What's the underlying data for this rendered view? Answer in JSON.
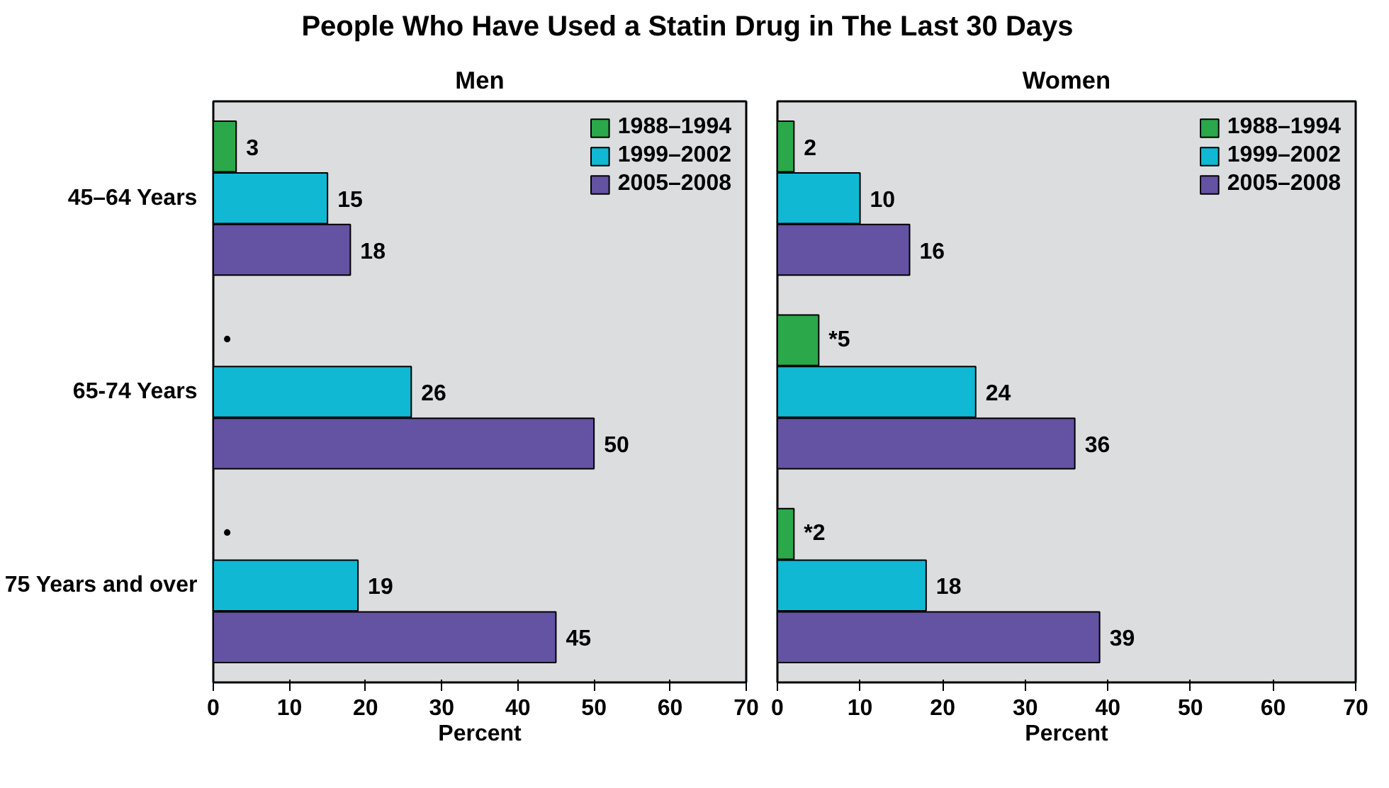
{
  "chart_data": [
    {
      "type": "bar",
      "orientation": "horizontal",
      "title": "People Who Have Used a Statin Drug in The Last 30 Days",
      "subtitle": "Men",
      "categories": [
        "45–64 Years",
        "65-74 Years",
        "75 Years and over"
      ],
      "xlabel": "Percent",
      "xlim": [
        0,
        70
      ],
      "xticks": [
        0,
        10,
        20,
        30,
        40,
        50,
        60,
        70
      ],
      "grid": false,
      "legend": "top right",
      "series": [
        {
          "name": "1988–1994",
          "color": "#2aa84a",
          "values": [
            3,
            null,
            null
          ],
          "value_labels": [
            "3",
            "•",
            "•"
          ]
        },
        {
          "name": "1999–2002",
          "color": "#10b8d4",
          "values": [
            15,
            26,
            19
          ],
          "value_labels": [
            "15",
            "26",
            "19"
          ]
        },
        {
          "name": "2005–2008",
          "color": "#6452a3",
          "values": [
            18,
            50,
            45
          ],
          "value_labels": [
            "18",
            "50",
            "45"
          ]
        }
      ]
    },
    {
      "type": "bar",
      "orientation": "horizontal",
      "subtitle": "Women",
      "categories": [
        null,
        null,
        null
      ],
      "xlabel": "Percent",
      "xlim": [
        0,
        70
      ],
      "xticks": [
        0,
        10,
        20,
        30,
        40,
        50,
        60,
        70
      ],
      "grid": false,
      "legend": "top right",
      "tick_labels": "x",
      "series": [
        {
          "name": "1988–1994",
          "color": "#2aa84a",
          "values": [
            2,
            5,
            2
          ],
          "value_labels": [
            "2",
            "*5",
            "*2"
          ]
        },
        {
          "name": "1999–2002",
          "color": "#10b8d4",
          "values": [
            10,
            24,
            18
          ],
          "value_labels": [
            "10",
            "24",
            "18"
          ]
        },
        {
          "name": "2005–2008",
          "color": "#6452a3",
          "values": [
            16,
            36,
            39
          ],
          "value_labels": [
            "16",
            "36",
            "39"
          ]
        }
      ]
    }
  ]
}
